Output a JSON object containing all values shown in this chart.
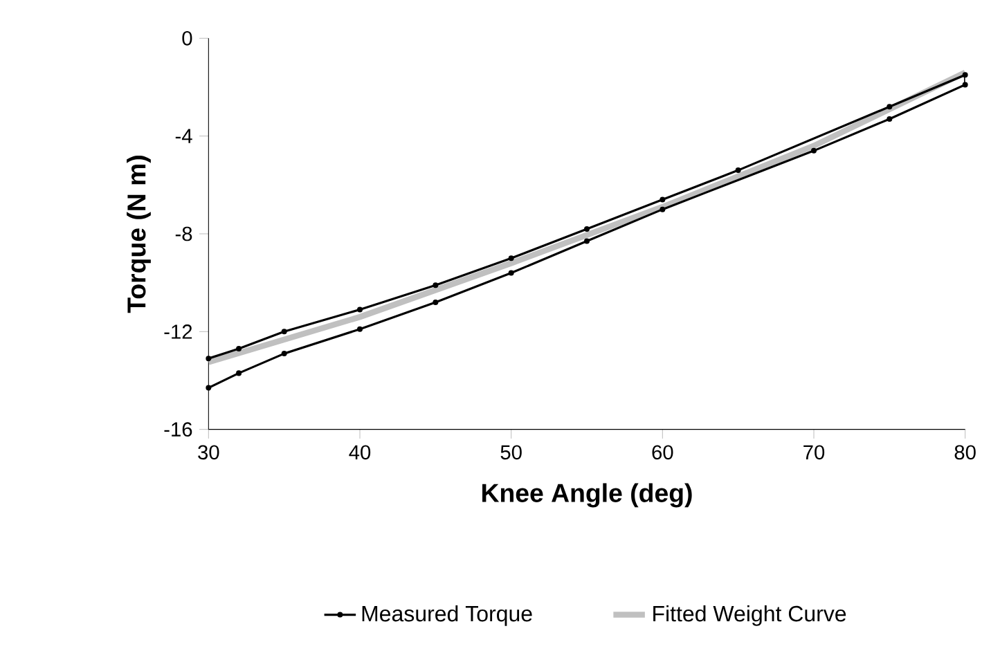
{
  "chart_data": {
    "type": "line",
    "xlabel": "Knee Angle (deg)",
    "ylabel": "Torque (N m)",
    "xlim": [
      30,
      80
    ],
    "ylim": [
      -16,
      0
    ],
    "xticks": [
      30,
      40,
      50,
      60,
      70,
      80
    ],
    "yticks": [
      -16,
      -12,
      -8,
      -4,
      0
    ],
    "grid": false,
    "legend": "bottom",
    "series": [
      {
        "name": "Measured Torque",
        "color": "#000000",
        "marker": "circle",
        "x": [
          30,
          32,
          35,
          40,
          45,
          50,
          55,
          60,
          70,
          75,
          80,
          80,
          75,
          65,
          60,
          55,
          50,
          45,
          40,
          35,
          32,
          30
        ],
        "values": [
          -14.3,
          -13.7,
          -12.9,
          -11.9,
          -10.8,
          -9.6,
          -8.3,
          -7.0,
          -4.6,
          -3.3,
          -1.9,
          -1.5,
          -2.8,
          -5.4,
          -6.6,
          -7.8,
          -9.0,
          -10.1,
          -11.1,
          -12.0,
          -12.7,
          -13.1
        ]
      },
      {
        "name": "Fitted Weight Curve",
        "color": "#c0c0c0",
        "marker": "none",
        "x": [
          30,
          40,
          50,
          60,
          70,
          80
        ],
        "values": [
          -13.25,
          -11.4,
          -9.2,
          -6.9,
          -4.4,
          -1.4
        ]
      }
    ]
  }
}
